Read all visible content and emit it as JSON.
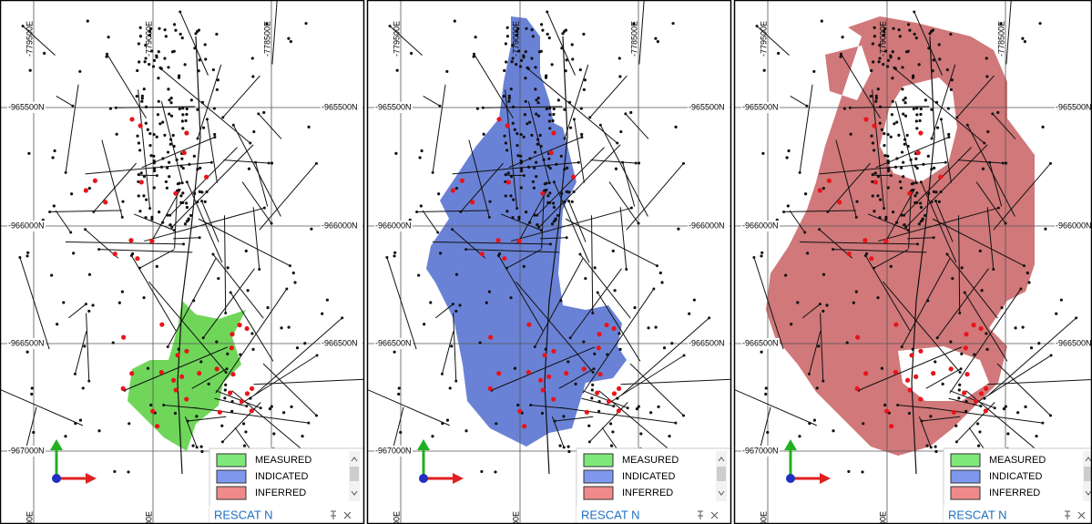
{
  "grid": {
    "eastings": [
      "-779500E",
      "-779000E",
      "-778500E"
    ],
    "northings": [
      "-965500N",
      "-966000N",
      "-966500N",
      "-967000N"
    ]
  },
  "legend": {
    "title": "RESCAT N",
    "items": [
      "MEASURED",
      "INDICATED",
      "INFERRED"
    ]
  }
}
